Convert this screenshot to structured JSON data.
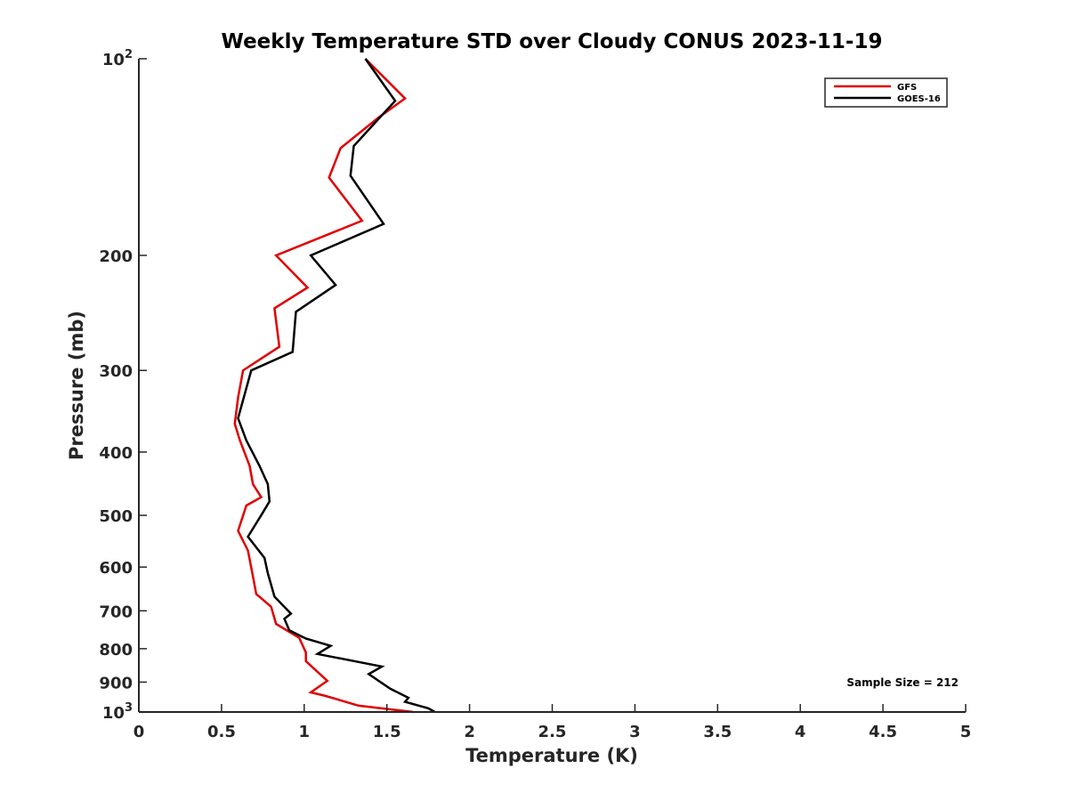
{
  "chart_data": {
    "type": "line",
    "title": "Weekly Temperature STD over Cloudy CONUS 2023-11-19",
    "xlabel": "Temperature (K)",
    "ylabel": "Pressure (mb)",
    "xlim": [
      0,
      5
    ],
    "ylim": [
      100,
      1000
    ],
    "yscale": "log",
    "y_reversed": true,
    "grid": false,
    "legend_position": "top-right",
    "annotation": "Sample Size = 212",
    "x_ticks": [
      {
        "value": 0,
        "label": "0"
      },
      {
        "value": 0.5,
        "label": "0.5"
      },
      {
        "value": 1,
        "label": "1"
      },
      {
        "value": 1.5,
        "label": "1.5"
      },
      {
        "value": 2,
        "label": "2"
      },
      {
        "value": 2.5,
        "label": "2.5"
      },
      {
        "value": 3,
        "label": "3"
      },
      {
        "value": 3.5,
        "label": "3.5"
      },
      {
        "value": 4,
        "label": "4"
      },
      {
        "value": 4.5,
        "label": "4.5"
      },
      {
        "value": 5,
        "label": "5"
      }
    ],
    "y_ticks": [
      {
        "value": 100,
        "label": "10",
        "sup": "2"
      },
      {
        "value": 200,
        "label": "200",
        "sup": ""
      },
      {
        "value": 300,
        "label": "300",
        "sup": ""
      },
      {
        "value": 400,
        "label": "400",
        "sup": ""
      },
      {
        "value": 500,
        "label": "500",
        "sup": ""
      },
      {
        "value": 600,
        "label": "600",
        "sup": ""
      },
      {
        "value": 700,
        "label": "700",
        "sup": ""
      },
      {
        "value": 800,
        "label": "800",
        "sup": ""
      },
      {
        "value": 900,
        "label": "900",
        "sup": ""
      },
      {
        "value": 1000,
        "label": "10",
        "sup": "3"
      }
    ],
    "series": [
      {
        "name": "GFS",
        "color": "#e00000",
        "points": [
          {
            "t": 1.37,
            "p": 100
          },
          {
            "t": 1.61,
            "p": 115
          },
          {
            "t": 1.45,
            "p": 123
          },
          {
            "t": 1.22,
            "p": 137
          },
          {
            "t": 1.15,
            "p": 152
          },
          {
            "t": 1.35,
            "p": 177
          },
          {
            "t": 0.83,
            "p": 200
          },
          {
            "t": 1.02,
            "p": 224
          },
          {
            "t": 0.82,
            "p": 241
          },
          {
            "t": 0.85,
            "p": 276
          },
          {
            "t": 0.63,
            "p": 300
          },
          {
            "t": 0.6,
            "p": 330
          },
          {
            "t": 0.58,
            "p": 362
          },
          {
            "t": 0.61,
            "p": 383
          },
          {
            "t": 0.67,
            "p": 420
          },
          {
            "t": 0.69,
            "p": 448
          },
          {
            "t": 0.74,
            "p": 469
          },
          {
            "t": 0.65,
            "p": 483
          },
          {
            "t": 0.6,
            "p": 528
          },
          {
            "t": 0.66,
            "p": 566
          },
          {
            "t": 0.69,
            "p": 620
          },
          {
            "t": 0.71,
            "p": 660
          },
          {
            "t": 0.8,
            "p": 690
          },
          {
            "t": 0.83,
            "p": 733
          },
          {
            "t": 0.97,
            "p": 770
          },
          {
            "t": 1.01,
            "p": 811
          },
          {
            "t": 1.01,
            "p": 836
          },
          {
            "t": 1.14,
            "p": 896
          },
          {
            "t": 1.04,
            "p": 933
          },
          {
            "t": 1.13,
            "p": 945
          },
          {
            "t": 1.33,
            "p": 978
          },
          {
            "t": 1.66,
            "p": 1000
          }
        ]
      },
      {
        "name": "GOES-16",
        "color": "#000000",
        "points": [
          {
            "t": 1.37,
            "p": 100
          },
          {
            "t": 1.55,
            "p": 116
          },
          {
            "t": 1.3,
            "p": 136
          },
          {
            "t": 1.28,
            "p": 151
          },
          {
            "t": 1.48,
            "p": 179
          },
          {
            "t": 1.04,
            "p": 200
          },
          {
            "t": 1.19,
            "p": 222
          },
          {
            "t": 0.95,
            "p": 244
          },
          {
            "t": 0.93,
            "p": 281
          },
          {
            "t": 0.68,
            "p": 300
          },
          {
            "t": 0.6,
            "p": 355
          },
          {
            "t": 0.65,
            "p": 384
          },
          {
            "t": 0.73,
            "p": 420
          },
          {
            "t": 0.78,
            "p": 448
          },
          {
            "t": 0.79,
            "p": 476
          },
          {
            "t": 0.75,
            "p": 495
          },
          {
            "t": 0.66,
            "p": 539
          },
          {
            "t": 0.76,
            "p": 581
          },
          {
            "t": 0.78,
            "p": 613
          },
          {
            "t": 0.82,
            "p": 666
          },
          {
            "t": 0.92,
            "p": 707
          },
          {
            "t": 0.88,
            "p": 720
          },
          {
            "t": 0.91,
            "p": 750
          },
          {
            "t": 1.01,
            "p": 772
          },
          {
            "t": 1.16,
            "p": 792
          },
          {
            "t": 1.08,
            "p": 815
          },
          {
            "t": 1.47,
            "p": 852
          },
          {
            "t": 1.39,
            "p": 875
          },
          {
            "t": 1.52,
            "p": 921
          },
          {
            "t": 1.63,
            "p": 951
          },
          {
            "t": 1.61,
            "p": 965
          },
          {
            "t": 1.75,
            "p": 987
          },
          {
            "t": 1.79,
            "p": 1000
          }
        ]
      }
    ]
  }
}
